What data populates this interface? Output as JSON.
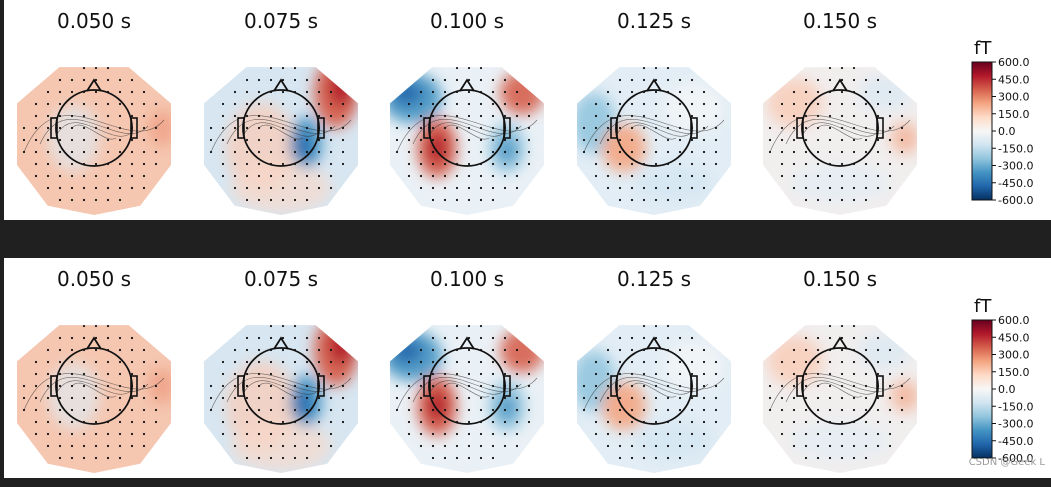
{
  "panels": [
    {
      "times": [
        "0.050 s",
        "0.075 s",
        "0.100 s",
        "0.125 s",
        "0.150 s"
      ]
    },
    {
      "times": [
        "0.050 s",
        "0.075 s",
        "0.100 s",
        "0.125 s",
        "0.150 s"
      ]
    }
  ],
  "colorbar": {
    "unit": "fT",
    "ticks": [
      "600.0",
      "450.0",
      "300.0",
      "150.0",
      "0.0",
      "-150.0",
      "-300.0",
      "-450.0",
      "-600.0"
    ],
    "range": [
      -600,
      600
    ],
    "colormap": [
      "#67001f",
      "#b2182b",
      "#d6604d",
      "#f4a582",
      "#fddbc7",
      "#f7f7f7",
      "#d1e5f0",
      "#92c5de",
      "#4393c3",
      "#2166ac",
      "#053061"
    ]
  },
  "watermark": "CSDN @Geek L"
}
